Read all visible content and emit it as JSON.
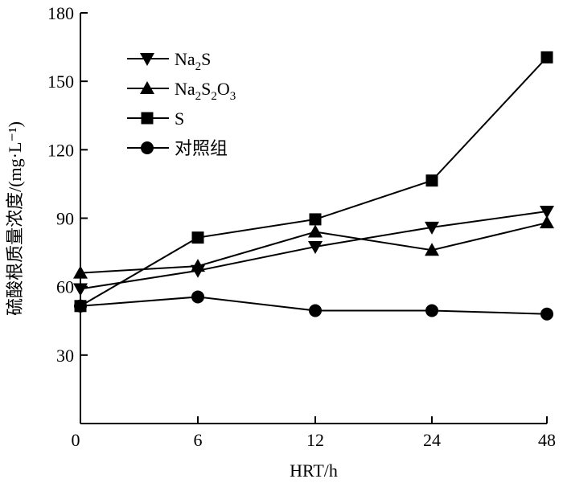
{
  "chart_data": {
    "type": "line",
    "categories": [
      "0",
      "6",
      "12",
      "24",
      "48"
    ],
    "xlabel": "HRT/h",
    "ylabel": "硫酸根质量浓度/(mg·L⁻¹)",
    "ylim": [
      0,
      180
    ],
    "yticks": [
      30,
      60,
      90,
      120,
      150,
      180
    ],
    "y_origin_label": "0",
    "grid": false,
    "legend_position": "top-left",
    "series": [
      {
        "name": "Na2S",
        "legend_parts": [
          [
            "Na",
            ""
          ],
          [
            "2",
            "sub"
          ],
          [
            "S",
            ""
          ]
        ],
        "marker": "triangle-down",
        "values": [
          59,
          67,
          77.5,
          86,
          93
        ]
      },
      {
        "name": "Na2S2O3",
        "legend_parts": [
          [
            "Na",
            ""
          ],
          [
            "2",
            "sub"
          ],
          [
            "S",
            ""
          ],
          [
            "2",
            "sub"
          ],
          [
            "O",
            ""
          ],
          [
            "3",
            "sub"
          ]
        ],
        "marker": "triangle-up",
        "values": [
          66,
          69,
          84,
          76,
          88
        ]
      },
      {
        "name": "S",
        "legend_parts": [
          [
            "S",
            ""
          ]
        ],
        "marker": "square",
        "values": [
          51.5,
          81.5,
          89.5,
          106.5,
          160.5
        ]
      },
      {
        "name": "对照组",
        "legend_parts": [
          [
            "对照组",
            ""
          ]
        ],
        "marker": "circle",
        "values": [
          51.5,
          55.5,
          49.5,
          49.5,
          48
        ]
      }
    ]
  }
}
